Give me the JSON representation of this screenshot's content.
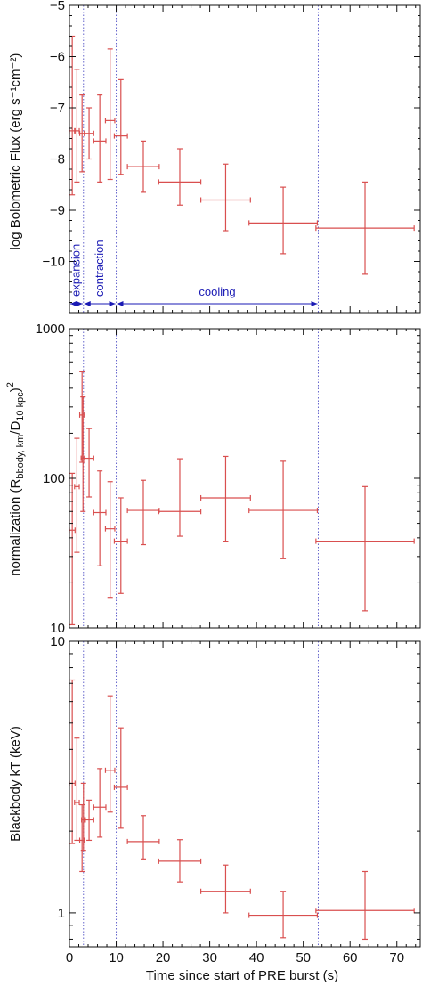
{
  "chart_data": [
    {
      "type": "scatter",
      "ylabel": "log Bolometric Flux (erg s⁻¹cm⁻²)",
      "xlim": [
        0,
        75
      ],
      "ylim": [
        -11,
        -5
      ],
      "yscale": "linear",
      "yticks": [
        -10,
        -9,
        -8,
        -7,
        -6,
        -5
      ],
      "ytick_labels": [
        "−10",
        "−9",
        "−8",
        "−7",
        "−6",
        "−5"
      ],
      "grid": false,
      "vlines": [
        3.0,
        10.0,
        53.2
      ],
      "phases": [
        {
          "label": "expansion",
          "start": 0,
          "end": 3.0
        },
        {
          "label": "contraction",
          "start": 3.0,
          "end": 10.0
        },
        {
          "label": "cooling",
          "start": 10.0,
          "end": 53.2
        }
      ],
      "series": [
        {
          "points": [
            {
              "x": 0.6,
              "xerr": 0.6,
              "y": -7.45,
              "ylo": -8.7,
              "yhi": -5.6
            },
            {
              "x": 1.6,
              "xerr": 0.5,
              "y": -7.45,
              "ylo": -8.45,
              "yhi": -6.25
            },
            {
              "x": 2.7,
              "xerr": 0.5,
              "y": -7.5,
              "ylo": -8.25,
              "yhi": -6.75
            },
            {
              "x": 4.2,
              "xerr": 1.0,
              "y": -7.5,
              "ylo": -8.0,
              "yhi": -7.0
            },
            {
              "x": 6.5,
              "xerr": 1.3,
              "y": -7.65,
              "ylo": -8.45,
              "yhi": -6.75
            },
            {
              "x": 8.7,
              "xerr": 1.0,
              "y": -7.25,
              "ylo": -8.4,
              "yhi": -5.85
            },
            {
              "x": 11.0,
              "xerr": 1.4,
              "y": -7.55,
              "ylo": -8.3,
              "yhi": -6.45
            },
            {
              "x": 15.8,
              "xerr": 3.4,
              "y": -8.15,
              "ylo": -8.65,
              "yhi": -7.65
            },
            {
              "x": 23.6,
              "xerr": 4.5,
              "y": -8.45,
              "ylo": -8.9,
              "yhi": -7.8
            },
            {
              "x": 33.4,
              "xerr": 5.3,
              "y": -8.8,
              "ylo": -9.4,
              "yhi": -8.1
            },
            {
              "x": 45.7,
              "xerr": 7.3,
              "y": -9.25,
              "ylo": -9.85,
              "yhi": -8.55
            },
            {
              "x": 63.2,
              "xerr": 10.5,
              "y": -9.35,
              "ylo": -10.25,
              "yhi": -8.45
            }
          ]
        }
      ]
    },
    {
      "type": "scatter",
      "ylabel": "normalization (R",
      "ylabel_sub": "bbody, km",
      "ylabel_mid": "/D",
      "ylabel_sub2": "10 kpc",
      "ylabel_end": ")",
      "ylabel_sup": "2",
      "xlim": [
        0,
        75
      ],
      "ylim": [
        10,
        1000
      ],
      "yscale": "log",
      "yticks": [
        10,
        100,
        1000
      ],
      "ytick_labels": [
        "10",
        "100",
        "1000"
      ],
      "grid": false,
      "vlines": [
        3.0,
        10.0,
        53.2
      ],
      "series": [
        {
          "points": [
            {
              "x": 0.6,
              "xerr": 0.6,
              "y": 45,
              "ylo": 10.5,
              "yhi": 108
            },
            {
              "x": 1.6,
              "xerr": 0.5,
              "y": 88,
              "ylo": 32,
              "yhi": 185
            },
            {
              "x": 2.7,
              "xerr": 0.5,
              "y": 265,
              "ylo": 128,
              "yhi": 515
            },
            {
              "x": 2.9,
              "xerr": 0.4,
              "y": 136,
              "ylo": 60,
              "yhi": 350
            },
            {
              "x": 4.2,
              "xerr": 1.0,
              "y": 136,
              "ylo": 75,
              "yhi": 215
            },
            {
              "x": 6.5,
              "xerr": 1.3,
              "y": 59,
              "ylo": 26,
              "yhi": 112
            },
            {
              "x": 8.7,
              "xerr": 1.0,
              "y": 46,
              "ylo": 16,
              "yhi": 95
            },
            {
              "x": 11.0,
              "xerr": 1.4,
              "y": 38,
              "ylo": 17,
              "yhi": 74
            },
            {
              "x": 15.8,
              "xerr": 3.4,
              "y": 61,
              "ylo": 36,
              "yhi": 97
            },
            {
              "x": 23.6,
              "xerr": 4.5,
              "y": 60,
              "ylo": 41,
              "yhi": 135
            },
            {
              "x": 33.4,
              "xerr": 5.3,
              "y": 74,
              "ylo": 38,
              "yhi": 140
            },
            {
              "x": 45.7,
              "xerr": 7.3,
              "y": 61,
              "ylo": 29,
              "yhi": 130
            },
            {
              "x": 63.2,
              "xerr": 10.5,
              "y": 38,
              "ylo": 13,
              "yhi": 88
            }
          ]
        }
      ]
    },
    {
      "type": "scatter",
      "xlabel": "Time since start of PRE burst (s)",
      "ylabel": "Blackbody kT (keV)",
      "xlim": [
        0,
        75
      ],
      "ylim": [
        0.75,
        10
      ],
      "yscale": "log",
      "yticks": [
        1,
        10
      ],
      "ytick_labels": [
        "1",
        "10"
      ],
      "xticks": [
        0,
        10,
        20,
        30,
        40,
        50,
        60,
        70
      ],
      "xtick_labels": [
        "0",
        "10",
        "20",
        "30",
        "40",
        "50",
        "60",
        "70"
      ],
      "grid": false,
      "vlines": [
        3.0,
        10.0,
        53.2
      ],
      "series": [
        {
          "points": [
            {
              "x": 0.6,
              "xerr": 0.6,
              "y": 3.0,
              "ylo": 1.8,
              "yhi": 7.2
            },
            {
              "x": 1.6,
              "xerr": 0.5,
              "y": 2.55,
              "ylo": 1.85,
              "yhi": 4.4
            },
            {
              "x": 2.7,
              "xerr": 0.5,
              "y": 1.85,
              "ylo": 1.42,
              "yhi": 2.5
            },
            {
              "x": 3.0,
              "xerr": 0.4,
              "y": 2.2,
              "ylo": 1.7,
              "yhi": 3.0
            },
            {
              "x": 4.2,
              "xerr": 1.0,
              "y": 2.2,
              "ylo": 1.85,
              "yhi": 2.6
            },
            {
              "x": 6.5,
              "xerr": 1.3,
              "y": 2.45,
              "ylo": 1.9,
              "yhi": 3.4
            },
            {
              "x": 8.7,
              "xerr": 1.0,
              "y": 3.35,
              "ylo": 2.35,
              "yhi": 6.3
            },
            {
              "x": 11.0,
              "xerr": 1.4,
              "y": 2.9,
              "ylo": 2.05,
              "yhi": 4.8
            },
            {
              "x": 15.8,
              "xerr": 3.4,
              "y": 1.83,
              "ylo": 1.58,
              "yhi": 2.28
            },
            {
              "x": 23.6,
              "xerr": 4.5,
              "y": 1.55,
              "ylo": 1.3,
              "yhi": 1.86
            },
            {
              "x": 33.4,
              "xerr": 5.3,
              "y": 1.2,
              "ylo": 1.0,
              "yhi": 1.5
            },
            {
              "x": 45.7,
              "xerr": 7.3,
              "y": 0.98,
              "ylo": 0.81,
              "yhi": 1.2
            },
            {
              "x": 63.2,
              "xerr": 10.5,
              "y": 1.02,
              "ylo": 0.8,
              "yhi": 1.42
            }
          ]
        }
      ]
    }
  ],
  "colors": {
    "data": "#d94f4f",
    "vline": "#6666cc",
    "phase": "#1a1ab4",
    "axis": "#111111"
  }
}
